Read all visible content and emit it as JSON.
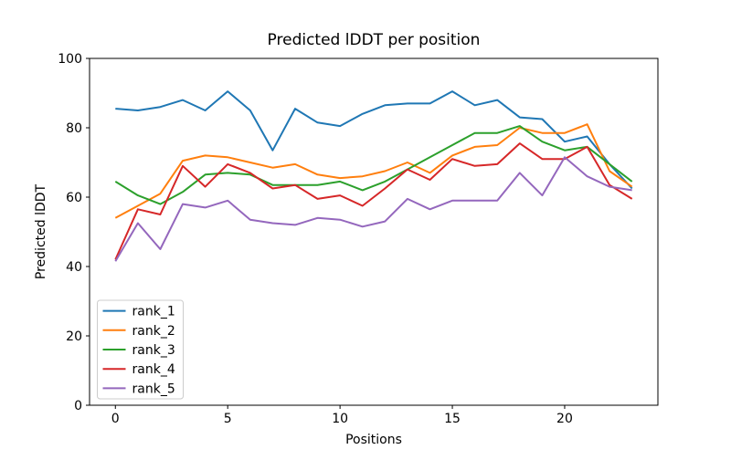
{
  "chart_data": {
    "type": "line",
    "title": "Predicted lDDT per position",
    "xlabel": "Positions",
    "ylabel": "Predicted lDDT",
    "x": [
      0,
      1,
      2,
      3,
      4,
      5,
      6,
      7,
      8,
      9,
      10,
      11,
      12,
      13,
      14,
      15,
      16,
      17,
      18,
      19,
      20,
      21,
      22,
      23
    ],
    "series": [
      {
        "name": "rank_1",
        "color": "#1f77b4",
        "values": [
          85.5,
          85,
          86,
          88,
          85,
          90.5,
          85,
          73.5,
          85.5,
          81.5,
          80.5,
          84,
          86.5,
          87,
          87,
          90.5,
          86.5,
          88,
          83,
          82.5,
          76,
          77.5,
          69.5,
          62.5
        ]
      },
      {
        "name": "rank_2",
        "color": "#ff7f0e",
        "values": [
          54,
          57.5,
          61,
          70.5,
          72,
          71.5,
          70,
          68.5,
          69.5,
          66.5,
          65.5,
          66,
          67.5,
          70,
          67,
          72,
          74.5,
          75,
          80,
          78.5,
          78.5,
          81,
          67.5,
          63
        ]
      },
      {
        "name": "rank_3",
        "color": "#2ca02c",
        "values": [
          64.5,
          60.5,
          58,
          61.5,
          66.5,
          67,
          66.5,
          63.5,
          63.5,
          63.5,
          64.5,
          62,
          64.5,
          68,
          71.5,
          75,
          78.5,
          78.5,
          80.5,
          76,
          73.5,
          74.5,
          69.5,
          64.5
        ]
      },
      {
        "name": "rank_4",
        "color": "#d62728",
        "values": [
          42,
          56.5,
          55,
          69,
          63,
          69.5,
          67,
          62.5,
          63.5,
          59.5,
          60.5,
          57.5,
          62.5,
          68,
          65,
          71,
          69,
          69.5,
          75.5,
          71,
          71,
          74.5,
          63.5,
          59.5
        ]
      },
      {
        "name": "rank_5",
        "color": "#9467bd",
        "values": [
          41.5,
          52.5,
          45,
          58,
          57,
          59,
          53.5,
          52.5,
          52,
          54,
          53.5,
          51.5,
          53,
          59.5,
          56.5,
          59,
          59,
          59,
          67,
          60.5,
          71.5,
          66,
          63,
          62
        ]
      }
    ],
    "xlim": [
      -1.15,
      24.15
    ],
    "ylim": [
      0,
      100
    ],
    "xticks": [
      0,
      5,
      10,
      15,
      20
    ],
    "yticks": [
      0,
      20,
      40,
      60,
      80,
      100
    ],
    "grid": false,
    "legend": {
      "position": "lower left",
      "entries": [
        "rank_1",
        "rank_2",
        "rank_3",
        "rank_4",
        "rank_5"
      ]
    },
    "axis_color": "#000000",
    "background_color": "#ffffff"
  }
}
